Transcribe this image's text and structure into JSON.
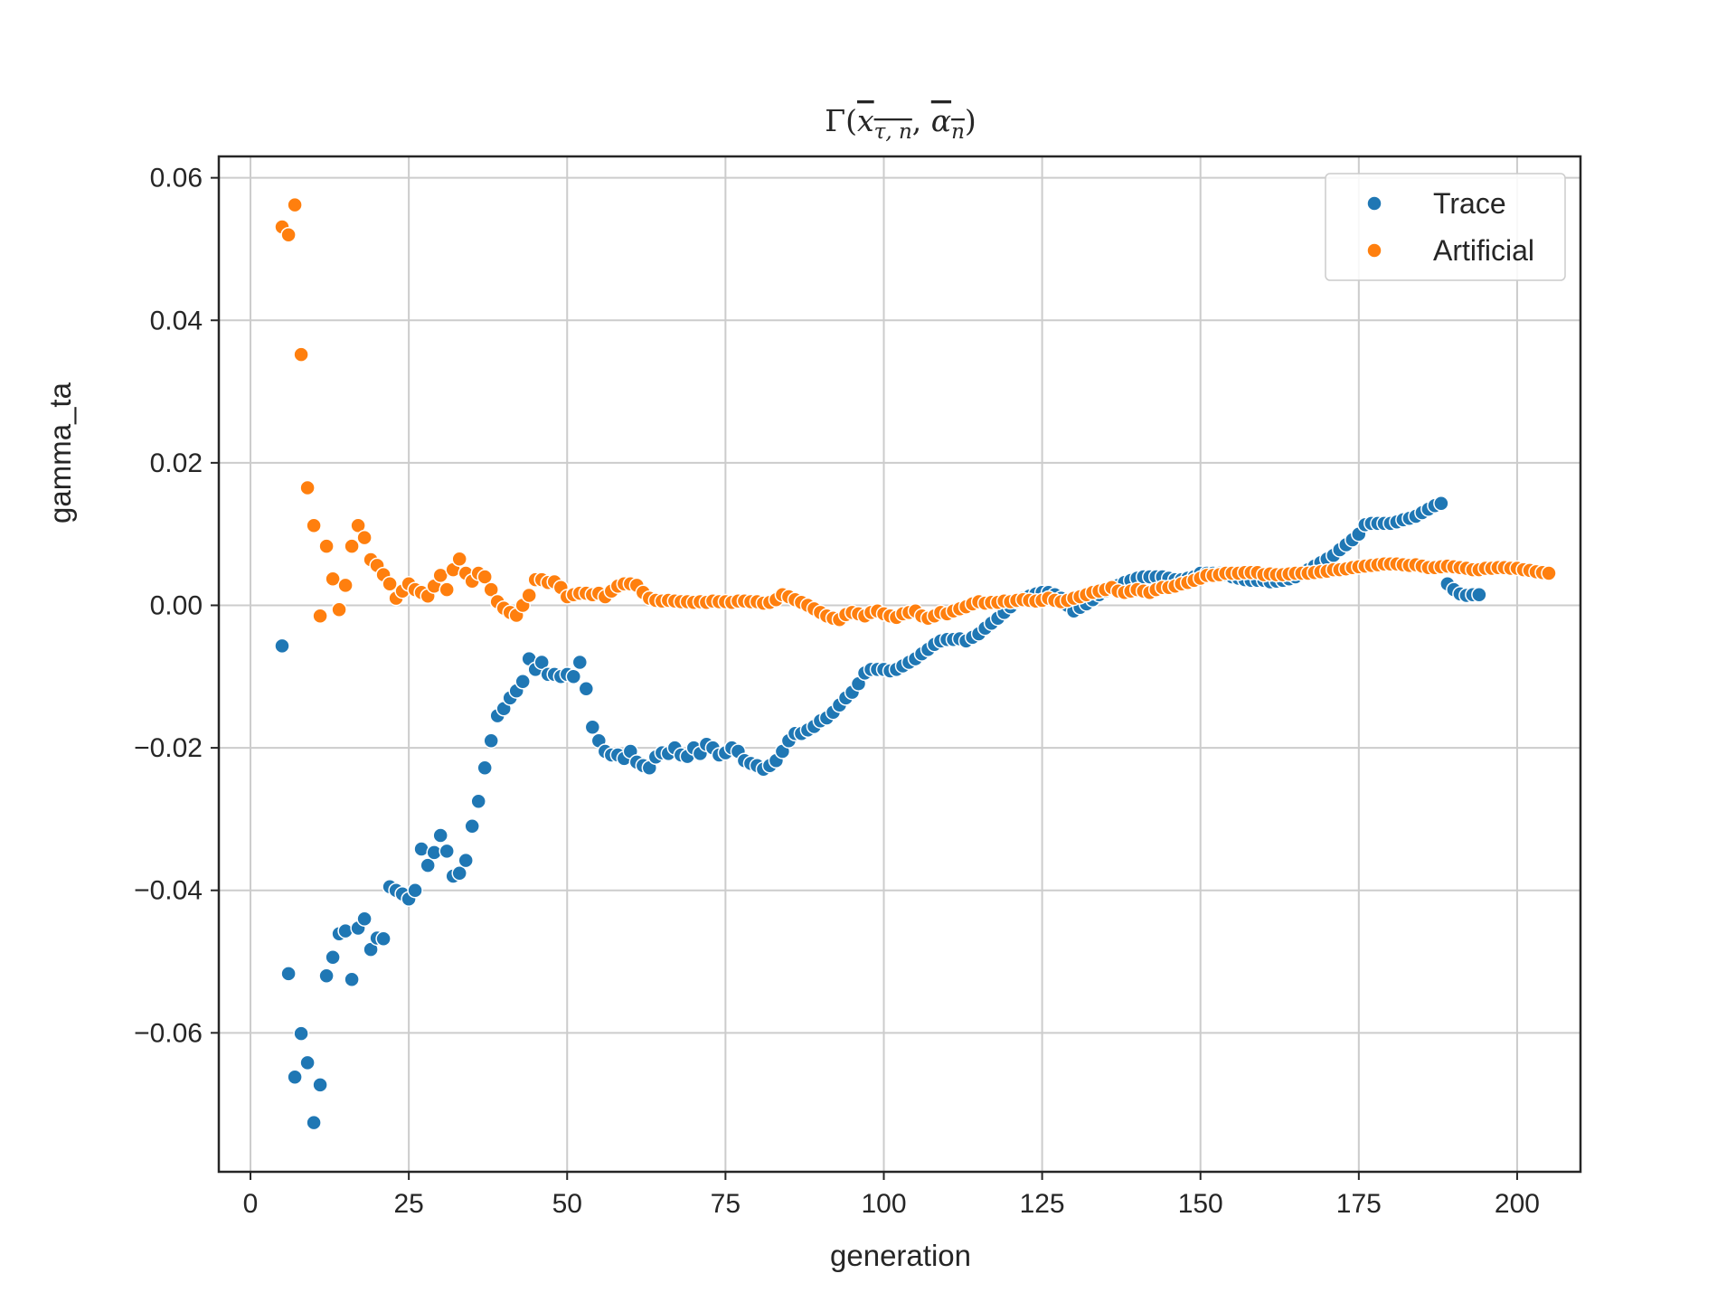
{
  "chart_data": {
    "type": "scatter",
    "title": {
      "prefix": "Γ(",
      "arg1_base": "x",
      "arg1_sub": "τ, n",
      "separator": ", ",
      "arg2_base": "α",
      "arg2_sub": "n",
      "suffix": ")"
    },
    "xlabel": "generation",
    "ylabel": "gamma_ta",
    "xlim": [
      -5,
      210
    ],
    "ylim": [
      -0.0795,
      0.063
    ],
    "xticks": [
      0,
      25,
      50,
      75,
      100,
      125,
      150,
      175,
      200
    ],
    "xtick_labels": [
      "0",
      "25",
      "50",
      "75",
      "100",
      "125",
      "150",
      "175",
      "200"
    ],
    "yticks": [
      -0.06,
      -0.04,
      -0.02,
      0.0,
      0.02,
      0.04,
      0.06
    ],
    "ytick_labels": [
      "−0.06",
      "−0.04",
      "−0.02",
      "0.00",
      "0.02",
      "0.04",
      "0.06"
    ],
    "grid": true,
    "legend_position": "upper right",
    "colors": {
      "Trace": "#1f77b4",
      "Artificial": "#ff7f0e",
      "grid": "#cccccc",
      "axes": "#262626"
    },
    "x_start": 5,
    "series": [
      {
        "name": "Trace",
        "values": [
          -0.0057,
          -0.0517,
          -0.0662,
          -0.0601,
          -0.0642,
          -0.0726,
          -0.0673,
          -0.052,
          -0.0494,
          -0.0461,
          -0.0457,
          -0.0525,
          -0.0453,
          -0.044,
          -0.0483,
          -0.0467,
          -0.0468,
          -0.0395,
          -0.04,
          -0.0405,
          -0.0412,
          -0.04,
          -0.0342,
          -0.0365,
          -0.0347,
          -0.0323,
          -0.0345,
          -0.038,
          -0.0376,
          -0.0358,
          -0.031,
          -0.0275,
          -0.0228,
          -0.019,
          -0.0155,
          -0.0145,
          -0.013,
          -0.012,
          -0.0107,
          -0.0075,
          -0.009,
          -0.008,
          -0.0097,
          -0.0097,
          -0.01,
          -0.0097,
          -0.01,
          -0.008,
          -0.0117,
          -0.0171,
          -0.019,
          -0.0205,
          -0.021,
          -0.021,
          -0.0215,
          -0.0205,
          -0.022,
          -0.0225,
          -0.0228,
          -0.0213,
          -0.0207,
          -0.0208,
          -0.02,
          -0.021,
          -0.0212,
          -0.02,
          -0.0208,
          -0.0195,
          -0.02,
          -0.021,
          -0.0207,
          -0.02,
          -0.0205,
          -0.0218,
          -0.0222,
          -0.0225,
          -0.023,
          -0.0225,
          -0.0218,
          -0.0205,
          -0.019,
          -0.018,
          -0.018,
          -0.0175,
          -0.017,
          -0.0162,
          -0.0158,
          -0.015,
          -0.014,
          -0.013,
          -0.0122,
          -0.011,
          -0.0095,
          -0.009,
          -0.009,
          -0.009,
          -0.0092,
          -0.009,
          -0.0085,
          -0.008,
          -0.0075,
          -0.0068,
          -0.0062,
          -0.0055,
          -0.005,
          -0.0048,
          -0.0048,
          -0.0047,
          -0.005,
          -0.0045,
          -0.004,
          -0.0032,
          -0.0025,
          -0.0018,
          -0.001,
          -0.0002,
          0.0005,
          0.001,
          0.0013,
          0.0016,
          0.0018,
          0.0018,
          0.0015,
          0.001,
          0.0,
          -0.0008,
          -0.0003,
          0.0002,
          0.0008,
          0.0015,
          0.002,
          0.0025,
          0.0028,
          0.0032,
          0.0035,
          0.0038,
          0.004,
          0.004,
          0.004,
          0.004,
          0.0038,
          0.0036,
          0.0036,
          0.0038,
          0.004,
          0.0045,
          0.0045,
          0.0045,
          0.0045,
          0.0043,
          0.004,
          0.0038,
          0.0036,
          0.0035,
          0.0035,
          0.0035,
          0.0033,
          0.0034,
          0.0035,
          0.0037,
          0.004,
          0.0045,
          0.005,
          0.0055,
          0.006,
          0.0065,
          0.007,
          0.0078,
          0.0085,
          0.0092,
          0.01,
          0.0113,
          0.0115,
          0.0115,
          0.0115,
          0.0115,
          0.0117,
          0.012,
          0.0122,
          0.0125,
          0.013,
          0.0135,
          0.014,
          0.0143,
          0.003,
          0.0022,
          0.0016,
          0.0014,
          0.0015,
          0.0015
        ]
      },
      {
        "name": "Artificial",
        "values": [
          0.0531,
          0.052,
          0.0562,
          0.0352,
          0.0165,
          0.0112,
          -0.0015,
          0.0083,
          0.0037,
          -0.0006,
          0.0028,
          0.0083,
          0.0112,
          0.0095,
          0.0064,
          0.0056,
          0.0043,
          0.003,
          0.001,
          0.002,
          0.003,
          0.0022,
          0.0018,
          0.0013,
          0.0027,
          0.0042,
          0.0022,
          0.005,
          0.0065,
          0.0045,
          0.0034,
          0.0045,
          0.004,
          0.0022,
          0.0005,
          -0.0004,
          -0.001,
          -0.0014,
          0.0,
          0.0014,
          0.0036,
          0.0036,
          0.0032,
          0.0033,
          0.0025,
          0.0012,
          0.0015,
          0.0017,
          0.0017,
          0.0015,
          0.0017,
          0.0012,
          0.002,
          0.0027,
          0.003,
          0.003,
          0.0028,
          0.0018,
          0.001,
          0.0007,
          0.0006,
          0.0007,
          0.0006,
          0.0005,
          0.0005,
          0.0004,
          0.0005,
          0.0004,
          0.0006,
          0.0005,
          0.0005,
          0.0004,
          0.0006,
          0.0006,
          0.0005,
          0.0005,
          0.0003,
          0.0004,
          0.0008,
          0.0015,
          0.0012,
          0.0008,
          0.0004,
          0.0,
          -0.0005,
          -0.001,
          -0.0015,
          -0.0018,
          -0.002,
          -0.0013,
          -0.001,
          -0.0012,
          -0.0015,
          -0.001,
          -0.0008,
          -0.0012,
          -0.0015,
          -0.0017,
          -0.0012,
          -0.001,
          -0.0008,
          -0.0015,
          -0.0018,
          -0.0015,
          -0.001,
          -0.0012,
          -0.0008,
          -0.0005,
          -0.0002,
          0.0002,
          0.0005,
          0.0003,
          0.0004,
          0.0004,
          0.0006,
          0.0005,
          0.0007,
          0.0008,
          0.0007,
          0.0006,
          0.0007,
          0.001,
          0.0007,
          0.0005,
          0.0007,
          0.001,
          0.0012,
          0.0015,
          0.0018,
          0.002,
          0.0022,
          0.0025,
          0.002,
          0.0018,
          0.002,
          0.0022,
          0.002,
          0.0018,
          0.0022,
          0.0025,
          0.0025,
          0.0027,
          0.003,
          0.0032,
          0.0035,
          0.0038,
          0.0042,
          0.0042,
          0.0043,
          0.0045,
          0.0045,
          0.0045,
          0.0046,
          0.0046,
          0.0046,
          0.0043,
          0.0044,
          0.0043,
          0.0043,
          0.0044,
          0.0045,
          0.0045,
          0.0045,
          0.0046,
          0.0047,
          0.0048,
          0.005,
          0.005,
          0.0051,
          0.0053,
          0.0054,
          0.0055,
          0.0056,
          0.0057,
          0.0058,
          0.0058,
          0.0058,
          0.0057,
          0.0056,
          0.0057,
          0.0055,
          0.0053,
          0.0053,
          0.0054,
          0.0055,
          0.0054,
          0.0053,
          0.0052,
          0.005,
          0.005,
          0.0052,
          0.0052,
          0.0053,
          0.0053,
          0.0052,
          0.0052,
          0.005,
          0.0049,
          0.0047,
          0.0046,
          0.0045
        ]
      }
    ]
  }
}
